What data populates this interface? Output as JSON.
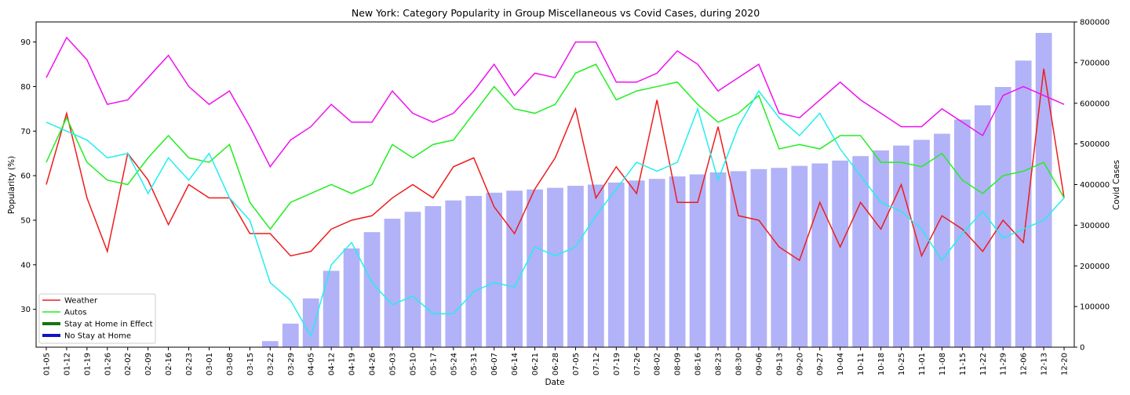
{
  "chart_data": {
    "type": "line",
    "title": "New York: Category Popularity in Group Miscellaneous vs Covid Cases, during 2020",
    "xlabel": "Date",
    "ylabel": "Popularity (%)",
    "y2label": "Covid Cases",
    "ylim": [
      21.5,
      94.5
    ],
    "y2lim": [
      0,
      800000
    ],
    "yticks": [
      30,
      40,
      50,
      60,
      70,
      80,
      90
    ],
    "y2ticks": [
      0,
      100000,
      200000,
      300000,
      400000,
      500000,
      600000,
      700000,
      800000
    ],
    "categories": [
      "01-05",
      "01-12",
      "01-19",
      "01-26",
      "02-02",
      "02-09",
      "02-16",
      "02-23",
      "03-01",
      "03-08",
      "03-15",
      "03-22",
      "03-29",
      "04-05",
      "04-12",
      "04-19",
      "04-26",
      "05-03",
      "05-10",
      "05-17",
      "05-24",
      "05-31",
      "06-07",
      "06-14",
      "06-21",
      "06-28",
      "07-05",
      "07-12",
      "07-19",
      "07-26",
      "08-02",
      "08-09",
      "08-16",
      "08-23",
      "08-30",
      "09-06",
      "09-13",
      "09-20",
      "09-27",
      "10-04",
      "10-11",
      "10-18",
      "10-25",
      "11-01",
      "11-08",
      "11-15",
      "11-22",
      "11-29",
      "12-06",
      "12-13",
      "12-20"
    ],
    "bars": {
      "color": "#b2b2f8",
      "axis": "right",
      "values": [
        0,
        0,
        0,
        0,
        0,
        0,
        0,
        0,
        0,
        0,
        0,
        15000,
        58000,
        120000,
        188000,
        243000,
        283000,
        316000,
        333000,
        347000,
        361000,
        372000,
        380000,
        385000,
        388000,
        392000,
        397000,
        400000,
        405000,
        410000,
        414000,
        420000,
        425000,
        430000,
        433000,
        438000,
        441000,
        446000,
        452000,
        459000,
        470000,
        484000,
        496000,
        510000,
        525000,
        560000,
        595000,
        640000,
        705000,
        773000,
        0
      ]
    },
    "series": [
      {
        "name": "Weather",
        "color": "#ee1c1c",
        "values": [
          58,
          74,
          55,
          43,
          65,
          59,
          49,
          58,
          55,
          55,
          47,
          47,
          42,
          43,
          48,
          50,
          51,
          55,
          58,
          55,
          62,
          64,
          53,
          47,
          57,
          64,
          75,
          55,
          62,
          56,
          77,
          54,
          54,
          71,
          51,
          50,
          44,
          41,
          54,
          44,
          54,
          48,
          58,
          42,
          51,
          48,
          43,
          50,
          45,
          84,
          55
        ]
      },
      {
        "name": "Autos",
        "color": "#22ee22",
        "values": [
          63,
          73,
          63,
          59,
          58,
          64,
          69,
          64,
          63,
          67,
          54,
          48,
          54,
          56,
          58,
          56,
          58,
          67,
          64,
          67,
          68,
          74,
          80,
          75,
          74,
          76,
          83,
          85,
          77,
          79,
          80,
          81,
          76,
          72,
          74,
          78,
          66,
          67,
          66,
          69,
          69,
          63,
          63,
          62,
          65,
          59,
          56,
          60,
          61,
          63,
          55
        ]
      },
      {
        "name": "",
        "color": "#ee11ee",
        "values": [
          82,
          91,
          86,
          76,
          77,
          82,
          87,
          80,
          76,
          79,
          71,
          62,
          68,
          71,
          76,
          72,
          72,
          79,
          74,
          72,
          74,
          79,
          85,
          78,
          83,
          82,
          90,
          90,
          81,
          81,
          83,
          88,
          85,
          79,
          82,
          85,
          74,
          73,
          77,
          81,
          77,
          74,
          71,
          71,
          75,
          72,
          69,
          78,
          80,
          78,
          76
        ]
      },
      {
        "name": "",
        "color": "#22eeee",
        "values": [
          72,
          70,
          68,
          64,
          65,
          56,
          64,
          59,
          65,
          55,
          50,
          36,
          32,
          24,
          40,
          45,
          36,
          31,
          33,
          29,
          29,
          34,
          36,
          35,
          44,
          42,
          44,
          51,
          57,
          63,
          61,
          63,
          75,
          59,
          71,
          79,
          73,
          69,
          74,
          66,
          60,
          54,
          52,
          48,
          41,
          47,
          52,
          46,
          48,
          50,
          55
        ]
      }
    ],
    "legend": {
      "placement": "lower-left",
      "entries": [
        {
          "label": "Weather",
          "color": "#ee1c1c"
        },
        {
          "label": "Autos",
          "color": "#22ee22"
        },
        {
          "label": "Stay at Home in Effect",
          "color": "#117711"
        },
        {
          "label": "No Stay at Home",
          "color": "#1111cc"
        }
      ]
    }
  }
}
